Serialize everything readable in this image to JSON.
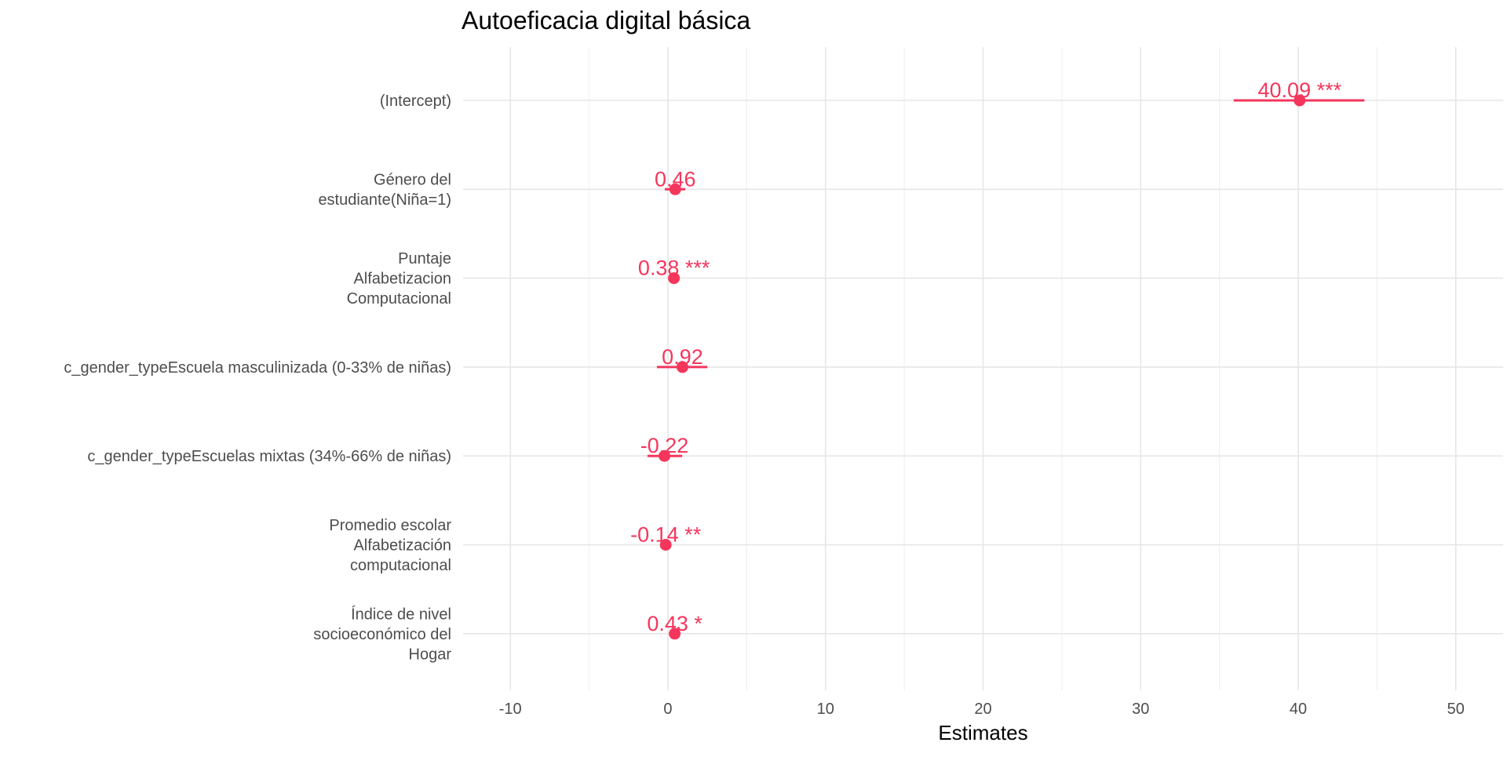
{
  "chart_data": {
    "type": "scatter",
    "title": "Autoeficacia digital básica",
    "xlabel": "Estimates",
    "ylabel": "",
    "xlim": [
      -13,
      53
    ],
    "xticks": [
      -10,
      0,
      10,
      20,
      30,
      40,
      50
    ],
    "xtick_labels": [
      "-10",
      "0",
      "10",
      "20",
      "30",
      "40",
      "50"
    ],
    "grid": true,
    "point_color": "#f5365c",
    "terms": [
      {
        "label_lines": [
          "(Intercept)"
        ],
        "estimate": 40.09,
        "ci": [
          35.9,
          44.2
        ],
        "label": "40.09 ***"
      },
      {
        "label_lines": [
          "Género del",
          "estudiante(Niña=1)"
        ],
        "estimate": 0.46,
        "ci": [
          -0.2,
          1.1
        ],
        "label": "0.46"
      },
      {
        "label_lines": [
          "Puntaje",
          "Alfabetizacion",
          "Computacional"
        ],
        "estimate": 0.38,
        "ci": [
          0.3,
          0.46
        ],
        "label": "0.38 ***"
      },
      {
        "label_lines": [
          "c_gender_typeEscuela masculinizada (0-33% de niñas)"
        ],
        "estimate": 0.92,
        "ci": [
          -0.7,
          2.5
        ],
        "label": "0.92"
      },
      {
        "label_lines": [
          "c_gender_typeEscuelas mixtas (34%-66% de niñas)"
        ],
        "estimate": -0.22,
        "ci": [
          -1.3,
          0.9
        ],
        "label": "-0.22"
      },
      {
        "label_lines": [
          "Promedio escolar",
          "Alfabetización",
          "computacional"
        ],
        "estimate": -0.14,
        "ci": [
          -0.22,
          -0.06
        ],
        "label": "-0.14 **"
      },
      {
        "label_lines": [
          "Índice de nivel",
          "socioeconómico del",
          "Hogar"
        ],
        "estimate": 0.43,
        "ci": [
          0.1,
          0.76
        ],
        "label": "0.43 *"
      }
    ]
  }
}
